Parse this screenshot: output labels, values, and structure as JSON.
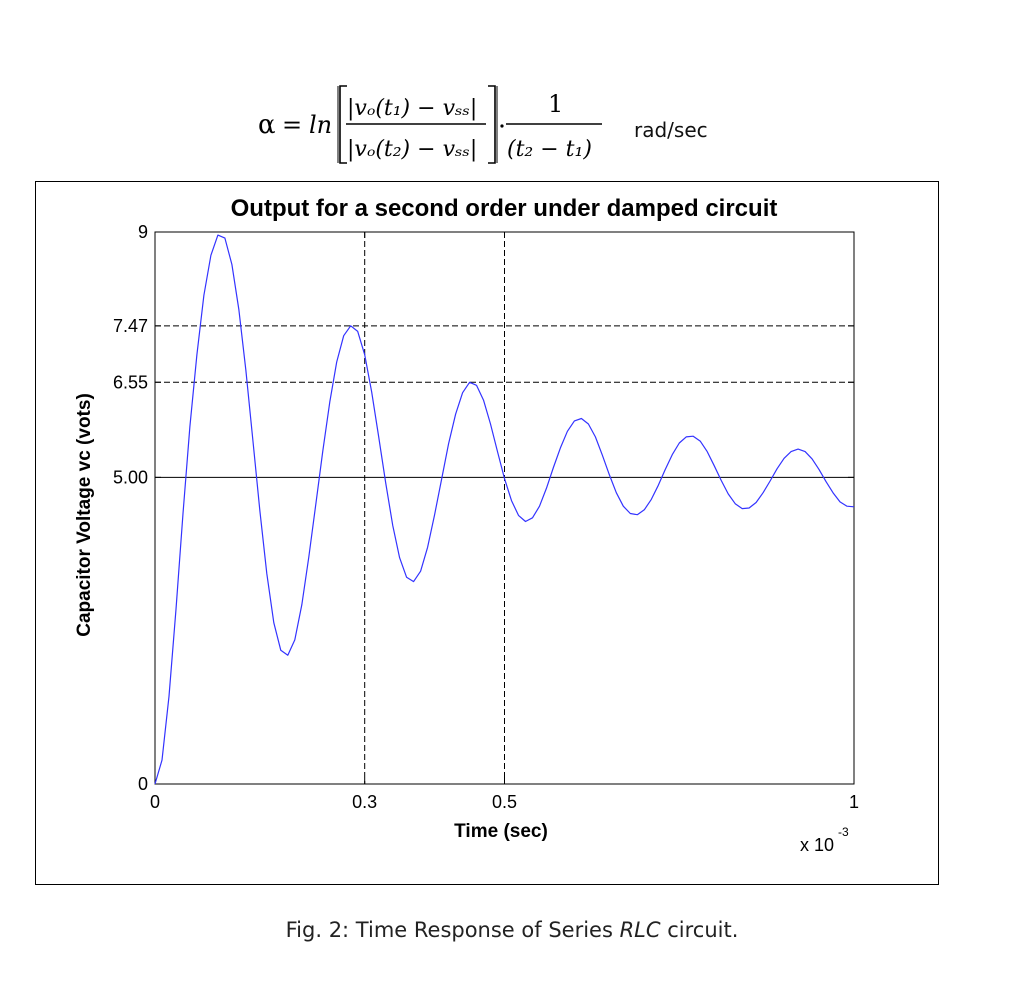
{
  "equation": {
    "lhs": "α",
    "func": "ln",
    "num1": "|vₒ(t₁) − vₛₛ|",
    "den1": "|vₒ(t₂) − vₛₛ|",
    "num2": "1",
    "den2": "(t₂ − t₁)",
    "units": "rad/sec"
  },
  "caption": {
    "prefix": "Fig. 2: Time Response of Series ",
    "italic": "RLC",
    "suffix": " circuit."
  },
  "chart_data": {
    "type": "line",
    "title": "Output for a second order under damped circuit",
    "xlabel": "Time (sec)",
    "ylabel": "Capacitor Voltage vc (vots)",
    "x_multiplier_label": "x 10",
    "x_multiplier_exp": "-3",
    "xlim": [
      0,
      1
    ],
    "ylim": [
      0,
      9
    ],
    "xticks": [
      {
        "value": 0,
        "label": "0"
      },
      {
        "value": 0.3,
        "label": "0.3"
      },
      {
        "value": 0.5,
        "label": "0.5"
      },
      {
        "value": 1,
        "label": "1"
      }
    ],
    "yticks": [
      {
        "value": 0,
        "label": "0"
      },
      {
        "value": 5.0,
        "label": "5.00"
      },
      {
        "value": 6.55,
        "label": "6.55"
      },
      {
        "value": 7.47,
        "label": "7.47"
      },
      {
        "value": 9,
        "label": "9"
      }
    ],
    "reference_hlines": [
      {
        "value": 7.47,
        "style": "dashed"
      },
      {
        "value": 6.55,
        "style": "dashed"
      },
      {
        "value": 5.0,
        "style": "solid"
      }
    ],
    "reference_vlines": [
      {
        "value": 0.3,
        "style": "dashed"
      },
      {
        "value": 0.5,
        "style": "dashed"
      }
    ],
    "series": [
      {
        "color": "#3333ff",
        "x": [
          0,
          0.01,
          0.02,
          0.03,
          0.04,
          0.05,
          0.06,
          0.07,
          0.08,
          0.09,
          0.1,
          0.11,
          0.12,
          0.13,
          0.14,
          0.15,
          0.16,
          0.17,
          0.18,
          0.19,
          0.2,
          0.21,
          0.22,
          0.23,
          0.24,
          0.25,
          0.26,
          0.27,
          0.28,
          0.29,
          0.3,
          0.31,
          0.32,
          0.33,
          0.34,
          0.35,
          0.36,
          0.37,
          0.38,
          0.39,
          0.4,
          0.41,
          0.42,
          0.43,
          0.44,
          0.45,
          0.46,
          0.47,
          0.48,
          0.49,
          0.5,
          0.51,
          0.52,
          0.53,
          0.54,
          0.55,
          0.56,
          0.57,
          0.58,
          0.59,
          0.6,
          0.61,
          0.62,
          0.63,
          0.64,
          0.65,
          0.66,
          0.67,
          0.68,
          0.69,
          0.7,
          0.71,
          0.72,
          0.73,
          0.74,
          0.75,
          0.76,
          0.77,
          0.78,
          0.79,
          0.8,
          0.81,
          0.82,
          0.83,
          0.84,
          0.85,
          0.86,
          0.87,
          0.88,
          0.89,
          0.9,
          0.91,
          0.92,
          0.93,
          0.94,
          0.95,
          0.96,
          0.97,
          0.98,
          0.99,
          1.0
        ],
        "y": [
          0.0,
          0.39,
          1.43,
          2.85,
          4.41,
          5.83,
          7.0,
          7.97,
          8.62,
          8.95,
          8.9,
          8.47,
          7.73,
          6.74,
          5.6,
          4.45,
          3.43,
          2.63,
          2.18,
          2.1,
          2.35,
          2.92,
          3.7,
          4.56,
          5.43,
          6.23,
          6.88,
          7.31,
          7.47,
          7.38,
          7.0,
          6.39,
          5.66,
          4.91,
          4.22,
          3.69,
          3.37,
          3.3,
          3.47,
          3.86,
          4.39,
          4.97,
          5.55,
          6.03,
          6.38,
          6.55,
          6.5,
          6.26,
          5.87,
          5.42,
          4.98,
          4.62,
          4.38,
          4.28,
          4.34,
          4.53,
          4.82,
          5.16,
          5.48,
          5.75,
          5.92,
          5.96,
          5.87,
          5.66,
          5.36,
          5.04,
          4.75,
          4.53,
          4.41,
          4.39,
          4.47,
          4.64,
          4.87,
          5.13,
          5.37,
          5.56,
          5.66,
          5.67,
          5.59,
          5.42,
          5.19,
          4.95,
          4.73,
          4.57,
          4.49,
          4.5,
          4.59,
          4.75,
          4.94,
          5.14,
          5.31,
          5.42,
          5.46,
          5.42,
          5.3,
          5.13,
          4.93,
          4.75,
          4.6,
          4.53,
          4.52
        ]
      }
    ],
    "grid": false
  }
}
